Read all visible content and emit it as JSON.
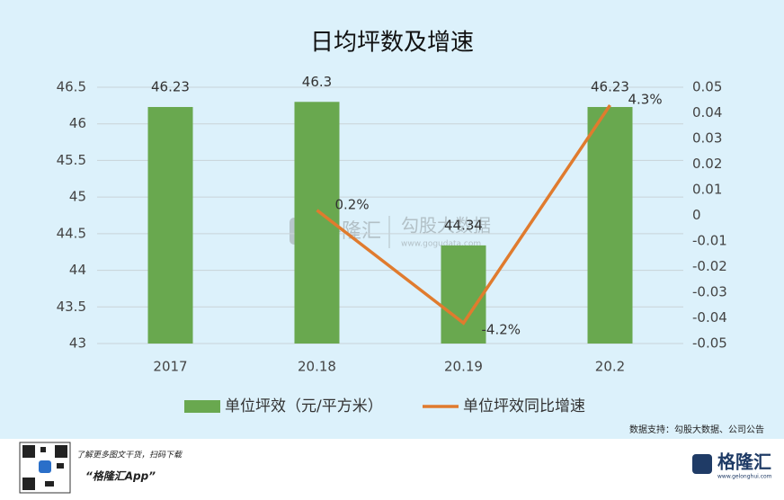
{
  "chart_data": {
    "type": "bar_line",
    "title": "日均坪数及增速",
    "categories": [
      "2017",
      "20.18",
      "20.19",
      "20.2"
    ],
    "series": [
      {
        "name": "单位坪效（元/平方米）",
        "color": "#69a84f",
        "type": "bar",
        "values": [
          46.23,
          46.3,
          44.34,
          46.23
        ]
      },
      {
        "name": "单位坪效同比增速",
        "color": "#e07b2e",
        "type": "line",
        "axis": "y2",
        "values": [
          null,
          0.002,
          -0.042,
          0.043
        ],
        "value_labels": [
          null,
          "0.2%",
          "-4.2%",
          "4.3%"
        ]
      }
    ],
    "ylim": [
      43,
      46.5
    ],
    "yticks": [
      43,
      43.5,
      44,
      44.5,
      45,
      45.5,
      46,
      46.5
    ],
    "y2lim": [
      -0.05,
      0.05
    ],
    "y2ticks": [
      -0.05,
      -0.04,
      -0.03,
      -0.02,
      -0.01,
      0,
      0.01,
      0.02,
      0.03,
      0.04,
      0.05
    ],
    "grid": true,
    "legend": "bottom",
    "source": "数据支持：勾股大数据、公司公告"
  },
  "watermark": {
    "brand": "格隆汇",
    "name": "勾股大数据",
    "url": "www.gogudata.com"
  },
  "footer": {
    "prompt": "了解更多图文干货，扫码下载",
    "app": "“格隆汇App”",
    "logo": "格隆汇",
    "site": "www.gelonghui.com"
  }
}
